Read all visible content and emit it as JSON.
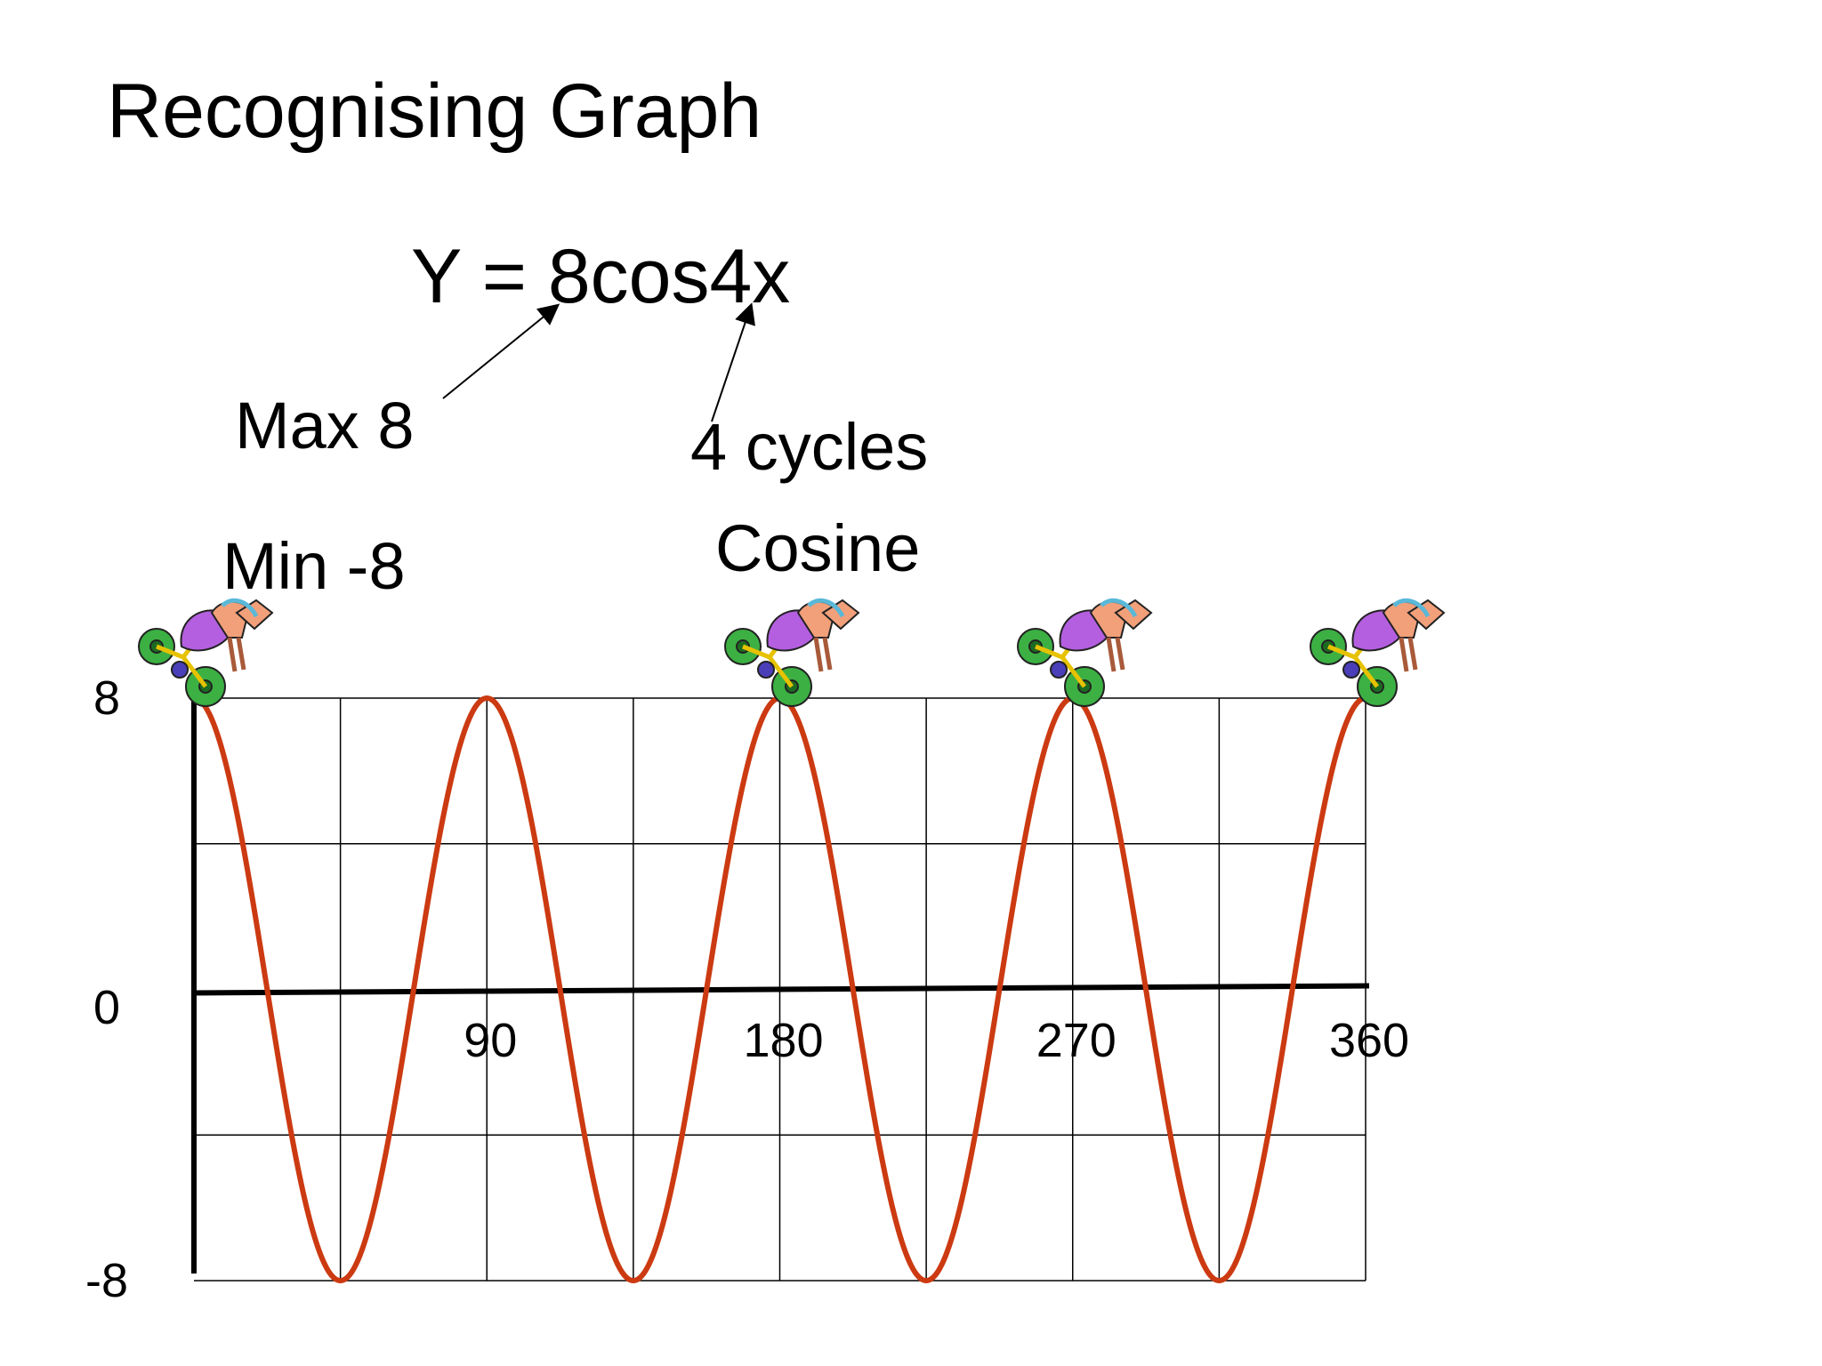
{
  "slide": {
    "title": "Recognising Graph",
    "equation": "Y = 8cos4x",
    "annotations": {
      "max": "Max 8",
      "min": "Min -8",
      "cycles": "4 cycles",
      "type": "Cosine"
    }
  },
  "chart_data": {
    "type": "line",
    "title": "",
    "xlabel": "",
    "ylabel": "",
    "xlim": [
      0,
      360
    ],
    "ylim": [
      -8,
      8
    ],
    "x_ticks": [
      {
        "value": 90,
        "label": "90"
      },
      {
        "value": 180,
        "label": "180"
      },
      {
        "value": 270,
        "label": "270"
      },
      {
        "value": 360,
        "label": "360"
      }
    ],
    "y_ticks": [
      {
        "value": 8,
        "label": "8"
      },
      {
        "value": 0,
        "label": "0"
      },
      {
        "value": -8,
        "label": "-8"
      }
    ],
    "grid": true,
    "grid_x_step": 45,
    "grid_y_values": [
      8,
      4,
      -4,
      -8
    ],
    "series": [
      {
        "name": "",
        "color": "#cc3a12",
        "function": "8cos4x",
        "amplitude": 8,
        "frequency": 4,
        "peaks_x": [
          0,
          90,
          180,
          270,
          360
        ],
        "troughs_x": [
          45,
          135,
          225,
          315
        ]
      }
    ],
    "cyclist_icon_x": [
      0,
      180,
      270,
      360
    ],
    "colors": {
      "curve": "#cc3a12",
      "grid": "#000000",
      "axis": "#000000"
    }
  }
}
